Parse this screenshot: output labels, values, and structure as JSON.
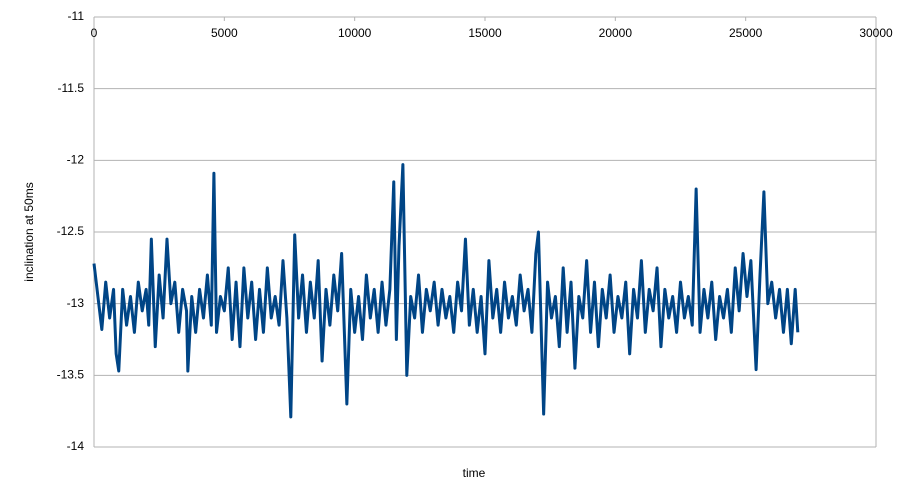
{
  "chart_data": {
    "type": "line",
    "xlabel": "time",
    "ylabel": "inclination at 50ms",
    "xlim": [
      0,
      30000
    ],
    "xticks": [
      0,
      5000,
      10000,
      15000,
      20000,
      25000,
      30000
    ],
    "ylim": [
      -14,
      -11
    ],
    "yticks": [
      -11,
      -11.5,
      -12,
      -12.5,
      -13,
      -13.5,
      -14
    ],
    "grid": true,
    "x": [
      0,
      150,
      300,
      450,
      600,
      750,
      850,
      950,
      1100,
      1250,
      1400,
      1550,
      1700,
      1850,
      2000,
      2100,
      2200,
      2350,
      2500,
      2650,
      2800,
      2950,
      3100,
      3250,
      3400,
      3550,
      3600,
      3750,
      3900,
      4050,
      4200,
      4350,
      4500,
      4600,
      4700,
      4850,
      5000,
      5150,
      5300,
      5450,
      5600,
      5750,
      5900,
      6050,
      6200,
      6350,
      6500,
      6650,
      6800,
      6950,
      7100,
      7250,
      7400,
      7550,
      7700,
      7850,
      8000,
      8150,
      8300,
      8450,
      8600,
      8750,
      8900,
      9050,
      9200,
      9350,
      9500,
      9700,
      9850,
      10000,
      10150,
      10300,
      10450,
      10600,
      10750,
      10900,
      11050,
      11200,
      11350,
      11500,
      11600,
      11700,
      11850,
      12000,
      12150,
      12300,
      12450,
      12600,
      12750,
      12900,
      13050,
      13200,
      13350,
      13500,
      13650,
      13800,
      13950,
      14100,
      14250,
      14400,
      14550,
      14700,
      14850,
      15000,
      15150,
      15300,
      15450,
      15600,
      15750,
      15900,
      16050,
      16200,
      16350,
      16500,
      16650,
      16800,
      16950,
      17050,
      17250,
      17400,
      17550,
      17700,
      17850,
      18000,
      18150,
      18300,
      18450,
      18600,
      18750,
      18900,
      19050,
      19200,
      19350,
      19500,
      19650,
      19800,
      19950,
      20100,
      20250,
      20400,
      20550,
      20700,
      20850,
      21000,
      21150,
      21300,
      21450,
      21600,
      21750,
      21900,
      22050,
      22200,
      22350,
      22500,
      22650,
      22800,
      22950,
      23100,
      23250,
      23400,
      23550,
      23700,
      23850,
      24000,
      24150,
      24300,
      24450,
      24600,
      24750,
      24900,
      25050,
      25200,
      25400,
      25550,
      25700,
      25850,
      26000,
      26150,
      26300,
      26450,
      26600,
      26750,
      26900,
      27000
    ],
    "series": [
      {
        "name": "inclination at 50ms",
        "color": "#004586",
        "values": [
          -12.72,
          -12.95,
          -13.18,
          -12.85,
          -13.1,
          -12.9,
          -13.35,
          -13.47,
          -12.9,
          -13.15,
          -12.95,
          -13.2,
          -12.85,
          -13.05,
          -12.9,
          -13.15,
          -12.55,
          -13.3,
          -12.8,
          -13.1,
          -12.55,
          -13.0,
          -12.85,
          -13.2,
          -12.9,
          -13.05,
          -13.47,
          -12.95,
          -13.2,
          -12.9,
          -13.1,
          -12.8,
          -13.15,
          -12.09,
          -13.2,
          -12.95,
          -13.05,
          -12.75,
          -13.25,
          -12.85,
          -13.3,
          -12.75,
          -13.1,
          -12.85,
          -13.25,
          -12.9,
          -13.2,
          -12.75,
          -13.1,
          -12.95,
          -13.15,
          -12.7,
          -13.1,
          -13.79,
          -12.52,
          -13.1,
          -12.8,
          -13.2,
          -12.85,
          -13.1,
          -12.7,
          -13.4,
          -12.9,
          -13.15,
          -12.8,
          -13.05,
          -12.65,
          -13.7,
          -12.9,
          -13.2,
          -12.95,
          -13.25,
          -12.8,
          -13.1,
          -12.9,
          -13.2,
          -12.85,
          -13.15,
          -12.9,
          -12.15,
          -13.25,
          -12.6,
          -12.03,
          -13.5,
          -12.95,
          -13.1,
          -12.8,
          -13.2,
          -12.9,
          -13.05,
          -12.85,
          -13.15,
          -12.9,
          -13.1,
          -12.95,
          -13.2,
          -12.85,
          -13.05,
          -12.55,
          -13.15,
          -12.9,
          -13.2,
          -12.95,
          -13.35,
          -12.7,
          -13.1,
          -12.9,
          -13.2,
          -12.85,
          -13.1,
          -12.95,
          -13.15,
          -12.8,
          -13.05,
          -12.9,
          -13.2,
          -12.65,
          -12.5,
          -13.77,
          -12.85,
          -13.1,
          -12.95,
          -13.3,
          -12.75,
          -13.2,
          -12.85,
          -13.45,
          -12.95,
          -13.1,
          -12.7,
          -13.2,
          -12.85,
          -13.3,
          -12.9,
          -13.1,
          -12.8,
          -13.2,
          -12.95,
          -13.1,
          -12.85,
          -13.35,
          -12.9,
          -13.1,
          -12.7,
          -13.2,
          -12.9,
          -13.05,
          -12.75,
          -13.3,
          -12.9,
          -13.1,
          -12.95,
          -13.2,
          -12.85,
          -13.1,
          -12.95,
          -13.15,
          -12.2,
          -13.2,
          -12.9,
          -13.1,
          -12.85,
          -13.25,
          -12.95,
          -13.1,
          -12.9,
          -13.2,
          -12.75,
          -13.05,
          -12.65,
          -12.95,
          -12.7,
          -13.46,
          -12.8,
          -12.22,
          -13.0,
          -12.85,
          -13.1,
          -12.9,
          -13.2,
          -12.9,
          -13.28,
          -12.9,
          -13.2
        ]
      }
    ]
  }
}
